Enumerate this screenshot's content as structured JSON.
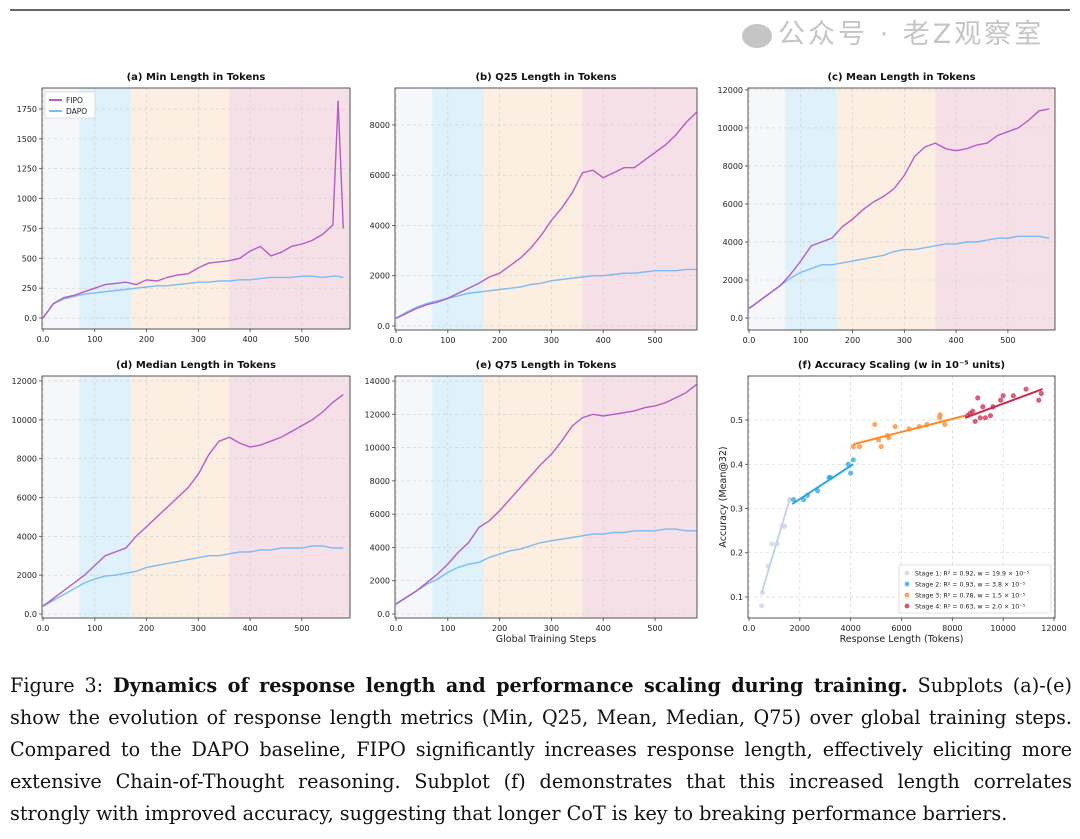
{
  "chart_data": [
    {
      "id": "a",
      "type": "line",
      "title": "(a) Min Length in Tokens",
      "xlabel": "",
      "ylabel": "",
      "xlim": [
        -2,
        593
      ],
      "ylim": [
        -92,
        1926
      ],
      "xticks": [
        0,
        100,
        200,
        300,
        400,
        500
      ],
      "yticks": [
        0,
        250,
        500,
        750,
        1000,
        1250,
        1500,
        1750
      ],
      "grid": true,
      "legend": "top-left",
      "stages": [
        [
          0,
          70
        ],
        [
          70,
          170
        ],
        [
          170,
          360
        ],
        [
          360,
          593
        ]
      ],
      "x": [
        0,
        20,
        40,
        60,
        80,
        100,
        120,
        140,
        160,
        180,
        200,
        220,
        240,
        260,
        280,
        300,
        320,
        340,
        360,
        380,
        400,
        420,
        440,
        460,
        480,
        500,
        520,
        540,
        560,
        570,
        580
      ],
      "series": [
        {
          "name": "FIPO",
          "values": [
            0,
            120,
            170,
            190,
            220,
            250,
            280,
            290,
            300,
            280,
            320,
            310,
            340,
            360,
            370,
            420,
            460,
            470,
            480,
            500,
            560,
            600,
            520,
            550,
            600,
            620,
            650,
            700,
            780,
            1820,
            750
          ]
        },
        {
          "name": "DAPO",
          "values": [
            0,
            120,
            160,
            180,
            200,
            210,
            220,
            230,
            240,
            250,
            260,
            270,
            270,
            280,
            290,
            300,
            300,
            310,
            310,
            320,
            320,
            330,
            340,
            340,
            340,
            350,
            350,
            340,
            350,
            350,
            340
          ]
        }
      ]
    },
    {
      "id": "b",
      "type": "line",
      "title": "(b) Q25 Length in Tokens",
      "xlabel": "",
      "ylabel": "",
      "xlim": [
        -2,
        581
      ],
      "ylim": [
        -160,
        9470
      ],
      "xticks": [
        0,
        100,
        200,
        300,
        400,
        500
      ],
      "yticks": [
        0,
        2000,
        4000,
        6000,
        8000
      ],
      "grid": true,
      "stages": [
        [
          0,
          70
        ],
        [
          70,
          170
        ],
        [
          170,
          360
        ],
        [
          360,
          581
        ]
      ],
      "x": [
        0,
        20,
        40,
        60,
        80,
        100,
        120,
        140,
        160,
        180,
        200,
        220,
        240,
        260,
        280,
        300,
        320,
        340,
        360,
        380,
        400,
        420,
        440,
        460,
        480,
        500,
        520,
        540,
        560,
        580
      ],
      "series": [
        {
          "name": "FIPO",
          "values": [
            300,
            500,
            700,
            850,
            950,
            1100,
            1300,
            1500,
            1700,
            1950,
            2100,
            2400,
            2700,
            3100,
            3600,
            4200,
            4700,
            5300,
            6100,
            6200,
            5900,
            6100,
            6300,
            6300,
            6600,
            6900,
            7200,
            7600,
            8100,
            8500
          ]
        },
        {
          "name": "DAPO",
          "values": [
            300,
            550,
            750,
            900,
            1000,
            1100,
            1200,
            1300,
            1350,
            1400,
            1450,
            1500,
            1550,
            1650,
            1700,
            1800,
            1850,
            1900,
            1950,
            2000,
            2000,
            2050,
            2100,
            2100,
            2150,
            2200,
            2200,
            2200,
            2250,
            2250
          ]
        }
      ]
    },
    {
      "id": "c",
      "type": "line",
      "title": "(c) Mean Length in Tokens",
      "xlabel": "",
      "ylabel": "",
      "xlim": [
        -2,
        591
      ],
      "ylim": [
        -630,
        12100
      ],
      "xticks": [
        0,
        100,
        200,
        300,
        400,
        500
      ],
      "yticks": [
        0,
        2000,
        4000,
        6000,
        8000,
        10000,
        12000
      ],
      "grid": true,
      "stages": [
        [
          0,
          70
        ],
        [
          70,
          170
        ],
        [
          170,
          360
        ],
        [
          360,
          591
        ]
      ],
      "x": [
        0,
        20,
        40,
        60,
        80,
        100,
        120,
        140,
        160,
        180,
        200,
        220,
        240,
        260,
        280,
        300,
        320,
        340,
        360,
        380,
        400,
        420,
        440,
        460,
        480,
        500,
        520,
        540,
        560,
        580
      ],
      "series": [
        {
          "name": "FIPO",
          "values": [
            500,
            900,
            1300,
            1700,
            2300,
            3000,
            3800,
            4000,
            4200,
            4800,
            5200,
            5700,
            6100,
            6400,
            6800,
            7500,
            8500,
            9000,
            9200,
            8900,
            8800,
            8900,
            9100,
            9200,
            9600,
            9800,
            10000,
            10400,
            10900,
            11000
          ]
        },
        {
          "name": "DAPO",
          "values": [
            500,
            900,
            1300,
            1700,
            2100,
            2400,
            2600,
            2800,
            2800,
            2900,
            3000,
            3100,
            3200,
            3300,
            3500,
            3600,
            3600,
            3700,
            3800,
            3900,
            3900,
            4000,
            4000,
            4100,
            4200,
            4200,
            4300,
            4300,
            4300,
            4200
          ]
        }
      ]
    },
    {
      "id": "d",
      "type": "line",
      "title": "(d) Median Length in Tokens",
      "xlabel": "",
      "ylabel": "",
      "xlim": [
        -2,
        593
      ],
      "ylim": [
        -206,
        12256
      ],
      "xticks": [
        0,
        100,
        200,
        300,
        400,
        500
      ],
      "yticks": [
        0,
        2000,
        4000,
        6000,
        8000,
        10000,
        12000
      ],
      "grid": true,
      "stages": [
        [
          0,
          70
        ],
        [
          70,
          170
        ],
        [
          170,
          360
        ],
        [
          360,
          593
        ]
      ],
      "x": [
        0,
        20,
        40,
        60,
        80,
        100,
        120,
        140,
        160,
        180,
        200,
        220,
        240,
        260,
        280,
        300,
        320,
        340,
        360,
        380,
        400,
        420,
        440,
        460,
        480,
        500,
        520,
        540,
        560,
        580
      ],
      "series": [
        {
          "name": "FIPO",
          "values": [
            400,
            800,
            1200,
            1600,
            2000,
            2500,
            3000,
            3200,
            3400,
            4000,
            4500,
            5000,
            5500,
            6000,
            6500,
            7200,
            8200,
            8900,
            9100,
            8800,
            8600,
            8700,
            8900,
            9100,
            9400,
            9700,
            10000,
            10400,
            10900,
            11300
          ]
        },
        {
          "name": "DAPO",
          "values": [
            400,
            700,
            1000,
            1300,
            1600,
            1800,
            1950,
            2000,
            2100,
            2200,
            2400,
            2500,
            2600,
            2700,
            2800,
            2900,
            3000,
            3000,
            3100,
            3200,
            3200,
            3300,
            3300,
            3400,
            3400,
            3400,
            3500,
            3500,
            3400,
            3400
          ]
        }
      ]
    },
    {
      "id": "e",
      "type": "line",
      "title": "(e) Q75 Length in Tokens",
      "xlabel": "Global Training Steps",
      "ylabel": "",
      "xlim": [
        -2,
        581
      ],
      "ylim": [
        -240,
        14303
      ],
      "xticks": [
        0,
        100,
        200,
        300,
        400,
        500
      ],
      "yticks": [
        0,
        2000,
        4000,
        6000,
        8000,
        10000,
        12000,
        14000
      ],
      "grid": true,
      "stages": [
        [
          0,
          70
        ],
        [
          70,
          170
        ],
        [
          170,
          360
        ],
        [
          360,
          581
        ]
      ],
      "x": [
        0,
        20,
        40,
        60,
        80,
        100,
        120,
        140,
        160,
        180,
        200,
        220,
        240,
        260,
        280,
        300,
        320,
        340,
        360,
        380,
        400,
        420,
        440,
        460,
        480,
        500,
        520,
        540,
        560,
        580
      ],
      "series": [
        {
          "name": "FIPO",
          "values": [
            600,
            1000,
            1400,
            1900,
            2400,
            3000,
            3700,
            4300,
            5200,
            5600,
            6200,
            6900,
            7600,
            8300,
            9000,
            9600,
            10400,
            11300,
            11800,
            12000,
            11900,
            12000,
            12100,
            12200,
            12400,
            12500,
            12700,
            13000,
            13300,
            13800
          ]
        },
        {
          "name": "DAPO",
          "values": [
            600,
            1000,
            1400,
            1800,
            2100,
            2500,
            2800,
            3000,
            3100,
            3400,
            3600,
            3800,
            3900,
            4100,
            4300,
            4400,
            4500,
            4600,
            4700,
            4800,
            4800,
            4900,
            4900,
            5000,
            5000,
            5000,
            5100,
            5100,
            5000,
            5000
          ]
        }
      ]
    },
    {
      "id": "f",
      "type": "scatter",
      "title": "(f) Accuracy Scaling (w in 10⁻⁵ units)",
      "xlabel": "Response Length (Tokens)",
      "ylabel": "Accuracy (Mean@32)",
      "xlim": [
        -40,
        12040
      ],
      "ylim": [
        0.0525,
        0.5995
      ],
      "xticks": [
        0,
        2000,
        4000,
        6000,
        8000,
        10000,
        12000
      ],
      "yticks": [
        0.1,
        0.2,
        0.3,
        0.4,
        0.5
      ],
      "grid": true,
      "legend": "bottom-right",
      "series": [
        {
          "name": "Stage 1: R² = 0.92, w = 19.9 × 10⁻⁵",
          "color": "#c9d3e6",
          "points": [
            [
              500,
              0.08
            ],
            [
              530,
              0.11
            ],
            [
              750,
              0.17
            ],
            [
              900,
              0.22
            ],
            [
              1100,
              0.22
            ],
            [
              1300,
              0.26
            ],
            [
              1400,
              0.26
            ],
            [
              1600,
              0.32
            ]
          ],
          "fit": [
            [
              500,
              0.11
            ],
            [
              1620,
              0.325
            ]
          ]
        },
        {
          "name": "Stage 2: R² = 0.93, w = 3.8 × 10⁻⁵",
          "color": "#2aa7e3",
          "points": [
            [
              1750,
              0.32
            ],
            [
              2150,
              0.32
            ],
            [
              2300,
              0.33
            ],
            [
              2700,
              0.34
            ],
            [
              3150,
              0.37
            ],
            [
              3200,
              0.37
            ],
            [
              3900,
              0.4
            ],
            [
              4000,
              0.38
            ],
            [
              4100,
              0.41
            ]
          ],
          "fit": [
            [
              1700,
              0.31
            ],
            [
              4100,
              0.4
            ]
          ]
        },
        {
          "name": "Stage 3: R² = 0.78, w = 1.5 × 10⁻⁵",
          "color": "#ff8a2e",
          "points": [
            [
              4100,
              0.44
            ],
            [
              4350,
              0.44
            ],
            [
              4950,
              0.49
            ],
            [
              5100,
              0.455
            ],
            [
              5200,
              0.44
            ],
            [
              5450,
              0.465
            ],
            [
              5500,
              0.46
            ],
            [
              5750,
              0.485
            ],
            [
              6300,
              0.48
            ],
            [
              6700,
              0.485
            ],
            [
              7000,
              0.49
            ],
            [
              7500,
              0.505
            ],
            [
              7520,
              0.512
            ],
            [
              7700,
              0.49
            ]
          ],
          "fit": [
            [
              4100,
              0.445
            ],
            [
              8500,
              0.51
            ]
          ]
        },
        {
          "name": "Stage 4: R² = 0.63, w = 2.0 × 10⁻⁵",
          "color": "#cc2a4d",
          "points": [
            [
              8600,
              0.51
            ],
            [
              8700,
              0.515
            ],
            [
              8800,
              0.52
            ],
            [
              8900,
              0.497
            ],
            [
              9000,
              0.55
            ],
            [
              9100,
              0.505
            ],
            [
              9200,
              0.53
            ],
            [
              9300,
              0.505
            ],
            [
              9500,
              0.51
            ],
            [
              9600,
              0.53
            ],
            [
              9900,
              0.545
            ],
            [
              10000,
              0.555
            ],
            [
              10400,
              0.555
            ],
            [
              10900,
              0.57
            ],
            [
              11400,
              0.545
            ],
            [
              11500,
              0.56
            ]
          ],
          "fit": [
            [
              8500,
              0.505
            ],
            [
              11550,
              0.57
            ]
          ]
        }
      ]
    }
  ],
  "colors": {
    "FIPO": "#b04cc2",
    "DAPO": "#6eb6f5",
    "stage_bands": [
      "#f5f7fa",
      "#dff1fa",
      "#fdeee2",
      "#f6e0e7"
    ]
  },
  "caption": {
    "label": "Figure 3: ",
    "bold": "Dynamics of response length and performance scaling during training.",
    "text": " Subplots (a)-(e) show the evolution of response length metrics (Min, Q25, Mean, Median, Q75) over global training steps. Compared to the DAPO baseline, FIPO significantly increases response length, effectively eliciting more extensive Chain-of-Thought reasoning. Subplot (f) demonstrates that this increased length correlates strongly with improved accuracy, suggesting that longer CoT is key to breaking performance barriers."
  },
  "watermark": "公众号 · 老Z观察室"
}
